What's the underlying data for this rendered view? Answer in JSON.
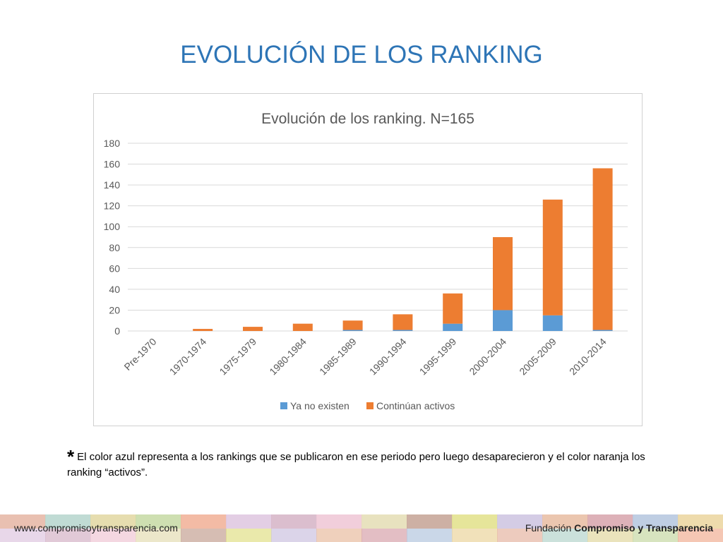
{
  "slide": {
    "title": "EVOLUCIÓN DE LOS RANKING",
    "footnote_marker": "*",
    "footnote_text": "El color azul representa a los rankings que se publicaron en ese periodo pero luego desaparecieron y el color naranja los ranking “activos”.",
    "footer_url": "www.compromisoytransparencia.com",
    "footer_org_prefix": "Fundación ",
    "footer_org_bold": "Compromiso y Transparencia"
  },
  "colors": {
    "title": "#2e75b6",
    "series_blue": "#5b9bd5",
    "series_orange": "#ed7d31",
    "footer_tiles": [
      "#e7b9a8",
      "#b9d7cf",
      "#e3d9a6",
      "#c9dba9",
      "#f2b49b",
      "#e0c9e1",
      "#d7b7c9",
      "#f0c9d7",
      "#e6dfb8",
      "#c8a79a",
      "#e3e28f",
      "#cfc6e2",
      "#e9c0a6",
      "#d9a8b0",
      "#b8c9e0",
      "#ecd7a3"
    ]
  },
  "chart_data": {
    "type": "bar",
    "stacked": true,
    "title": "Evolución de los ranking. N=165",
    "categories": [
      "Pre-1970",
      "1970-1974",
      "1975-1979",
      "1980-1984",
      "1985-1989",
      "1990-1994",
      "1995-1999",
      "2000-2004",
      "2005-2009",
      "2010-2014"
    ],
    "series": [
      {
        "name": "Ya no existen",
        "values": [
          0,
          0,
          0,
          0,
          1,
          1,
          7,
          20,
          15,
          1
        ]
      },
      {
        "name": "Continúan activos",
        "values": [
          0,
          2,
          4,
          7,
          9,
          15,
          29,
          70,
          111,
          155
        ]
      }
    ],
    "xlabel": "",
    "ylabel": "",
    "ylim": [
      0,
      180
    ],
    "yticks": [
      0,
      20,
      40,
      60,
      80,
      100,
      120,
      140,
      160,
      180
    ],
    "grid": true,
    "legend": "bottom"
  }
}
